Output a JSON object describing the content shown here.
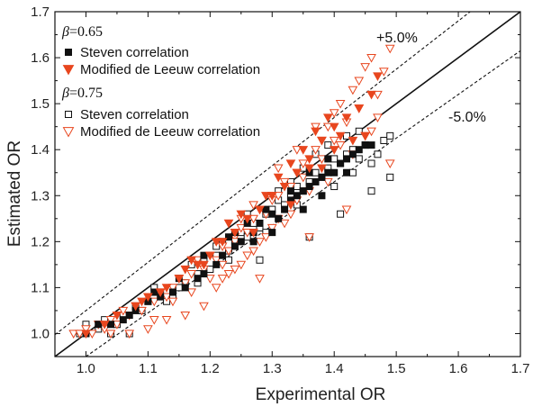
{
  "chart_data": {
    "type": "scatter",
    "xlabel": "Experimental OR",
    "ylabel": "Estimated OR",
    "xlim": [
      0.95,
      1.7
    ],
    "ylim": [
      0.95,
      1.7
    ],
    "xticks": [
      "1.0",
      "1.1",
      "1.2",
      "1.3",
      "1.4",
      "1.5",
      "1.6",
      "1.7"
    ],
    "yticks": [
      "1.0",
      "1.1",
      "1.2",
      "1.3",
      "1.4",
      "1.5",
      "1.6",
      "1.7"
    ],
    "grid": false,
    "legend_position": "top-left",
    "legend_groups": [
      {
        "title": "β=0.65",
        "symbol": "β",
        "value": "=0.65",
        "entries": [
          "Steven correlation",
          "Modified de Leeuw correlation"
        ]
      },
      {
        "title": "β=0.75",
        "symbol": "β",
        "value": "=0.75",
        "entries": [
          "Steven correlation",
          "Modified de Leeuw correlation"
        ]
      }
    ],
    "reference_lines": [
      {
        "name": "y=x",
        "slope": 1.0,
        "style": "solid"
      },
      {
        "name": "+5.0%",
        "label": "+5.0%",
        "slope": 1.05,
        "style": "dashed"
      },
      {
        "name": "-5.0%",
        "label": "-5.0%",
        "slope": 0.95,
        "style": "dashed"
      }
    ],
    "series": [
      {
        "name": "Steven correlation",
        "group": "β=0.65",
        "marker": "square",
        "filled": true,
        "color": "#111111",
        "points": [
          [
            1.0,
            1.0
          ],
          [
            1.02,
            1.02
          ],
          [
            1.04,
            1.02
          ],
          [
            1.06,
            1.03
          ],
          [
            1.08,
            1.05
          ],
          [
            1.1,
            1.07
          ],
          [
            1.12,
            1.08
          ],
          [
            1.14,
            1.09
          ],
          [
            1.16,
            1.1
          ],
          [
            1.18,
            1.12
          ],
          [
            1.19,
            1.13
          ],
          [
            1.21,
            1.15
          ],
          [
            1.22,
            1.17
          ],
          [
            1.24,
            1.19
          ],
          [
            1.25,
            1.2
          ],
          [
            1.27,
            1.22
          ],
          [
            1.28,
            1.24
          ],
          [
            1.3,
            1.26
          ],
          [
            1.31,
            1.25
          ],
          [
            1.32,
            1.27
          ],
          [
            1.33,
            1.29
          ],
          [
            1.34,
            1.3
          ],
          [
            1.35,
            1.31
          ],
          [
            1.36,
            1.32
          ],
          [
            1.37,
            1.33
          ],
          [
            1.38,
            1.34
          ],
          [
            1.39,
            1.35
          ],
          [
            1.4,
            1.35
          ],
          [
            1.41,
            1.37
          ],
          [
            1.42,
            1.38
          ],
          [
            1.43,
            1.39
          ],
          [
            1.44,
            1.4
          ],
          [
            1.45,
            1.41
          ],
          [
            1.23,
            1.21
          ],
          [
            1.26,
            1.24
          ],
          [
            1.29,
            1.27
          ],
          [
            1.33,
            1.31
          ],
          [
            1.36,
            1.35
          ],
          [
            1.39,
            1.38
          ],
          [
            1.19,
            1.17
          ],
          [
            1.15,
            1.12
          ],
          [
            1.27,
            1.2
          ],
          [
            1.35,
            1.27
          ],
          [
            1.42,
            1.35
          ],
          [
            1.11,
            1.09
          ],
          [
            1.07,
            1.04
          ],
          [
            1.3,
            1.22
          ],
          [
            1.38,
            1.3
          ],
          [
            1.46,
            1.41
          ],
          [
            1.24,
            1.22
          ]
        ]
      },
      {
        "name": "Modified de Leeuw correlation",
        "group": "β=0.65",
        "marker": "triangle-down",
        "filled": true,
        "color": "#e8461e",
        "points": [
          [
            1.0,
            1.0
          ],
          [
            1.03,
            1.02
          ],
          [
            1.05,
            1.04
          ],
          [
            1.08,
            1.06
          ],
          [
            1.1,
            1.08
          ],
          [
            1.13,
            1.1
          ],
          [
            1.15,
            1.12
          ],
          [
            1.18,
            1.15
          ],
          [
            1.2,
            1.17
          ],
          [
            1.22,
            1.2
          ],
          [
            1.24,
            1.22
          ],
          [
            1.26,
            1.25
          ],
          [
            1.28,
            1.27
          ],
          [
            1.3,
            1.3
          ],
          [
            1.32,
            1.32
          ],
          [
            1.34,
            1.35
          ],
          [
            1.36,
            1.38
          ],
          [
            1.38,
            1.42
          ],
          [
            1.4,
            1.45
          ],
          [
            1.42,
            1.47
          ],
          [
            1.44,
            1.49
          ],
          [
            1.46,
            1.52
          ],
          [
            1.47,
            1.56
          ],
          [
            1.35,
            1.4
          ],
          [
            1.37,
            1.44
          ],
          [
            1.39,
            1.47
          ],
          [
            1.41,
            1.43
          ],
          [
            1.43,
            1.42
          ],
          [
            1.29,
            1.3
          ],
          [
            1.31,
            1.34
          ],
          [
            1.33,
            1.37
          ],
          [
            1.25,
            1.26
          ],
          [
            1.21,
            1.2
          ],
          [
            1.17,
            1.16
          ],
          [
            1.12,
            1.09
          ],
          [
            1.19,
            1.15
          ],
          [
            1.27,
            1.22
          ],
          [
            1.33,
            1.28
          ],
          [
            1.45,
            1.43
          ],
          [
            1.23,
            1.24
          ],
          [
            1.36,
            1.36
          ],
          [
            1.4,
            1.4
          ],
          [
            1.38,
            1.36
          ],
          [
            1.16,
            1.14
          ],
          [
            1.09,
            1.07
          ]
        ]
      },
      {
        "name": "Steven correlation",
        "group": "β=0.75",
        "marker": "square",
        "filled": false,
        "color": "#111111",
        "points": [
          [
            0.99,
            1.0
          ],
          [
            1.0,
            1.02
          ],
          [
            1.02,
            1.01
          ],
          [
            1.03,
            1.03
          ],
          [
            1.05,
            1.02
          ],
          [
            1.06,
            1.04
          ],
          [
            1.08,
            1.06
          ],
          [
            1.09,
            1.05
          ],
          [
            1.1,
            1.07
          ],
          [
            1.12,
            1.09
          ],
          [
            1.13,
            1.07
          ],
          [
            1.15,
            1.1
          ],
          [
            1.16,
            1.11
          ],
          [
            1.18,
            1.13
          ],
          [
            1.19,
            1.16
          ],
          [
            1.2,
            1.14
          ],
          [
            1.21,
            1.17
          ],
          [
            1.23,
            1.18
          ],
          [
            1.24,
            1.2
          ],
          [
            1.25,
            1.22
          ],
          [
            1.26,
            1.21
          ],
          [
            1.27,
            1.24
          ],
          [
            1.28,
            1.23
          ],
          [
            1.29,
            1.26
          ],
          [
            1.3,
            1.27
          ],
          [
            1.31,
            1.29
          ],
          [
            1.32,
            1.28
          ],
          [
            1.33,
            1.3
          ],
          [
            1.34,
            1.32
          ],
          [
            1.35,
            1.31
          ],
          [
            1.36,
            1.33
          ],
          [
            1.37,
            1.35
          ],
          [
            1.38,
            1.34
          ],
          [
            1.39,
            1.36
          ],
          [
            1.4,
            1.38
          ],
          [
            1.41,
            1.37
          ],
          [
            1.42,
            1.39
          ],
          [
            1.43,
            1.4
          ],
          [
            1.44,
            1.38
          ],
          [
            1.45,
            1.41
          ],
          [
            1.47,
            1.39
          ],
          [
            1.48,
            1.42
          ],
          [
            1.49,
            1.43
          ],
          [
            1.49,
            1.34
          ],
          [
            1.46,
            1.31
          ],
          [
            1.41,
            1.26
          ],
          [
            1.36,
            1.21
          ],
          [
            1.28,
            1.16
          ],
          [
            1.22,
            1.2
          ],
          [
            1.17,
            1.15
          ],
          [
            1.11,
            1.1
          ],
          [
            1.07,
            1.0
          ],
          [
            1.04,
            1.0
          ],
          [
            1.14,
            1.08
          ],
          [
            1.26,
            1.26
          ],
          [
            1.33,
            1.33
          ],
          [
            1.39,
            1.41
          ],
          [
            1.42,
            1.43
          ],
          [
            1.44,
            1.44
          ],
          [
            1.37,
            1.39
          ],
          [
            1.31,
            1.31
          ],
          [
            1.21,
            1.19
          ],
          [
            1.35,
            1.36
          ],
          [
            1.43,
            1.35
          ],
          [
            1.46,
            1.37
          ],
          [
            1.4,
            1.32
          ],
          [
            1.34,
            1.28
          ],
          [
            1.29,
            1.22
          ],
          [
            1.23,
            1.16
          ],
          [
            1.18,
            1.11
          ]
        ]
      },
      {
        "name": "Modified de Leeuw correlation",
        "group": "β=0.75",
        "marker": "triangle-down",
        "filled": false,
        "color": "#e8461e",
        "points": [
          [
            0.98,
            1.0
          ],
          [
            0.99,
            1.0
          ],
          [
            1.0,
            1.01
          ],
          [
            1.01,
            1.0
          ],
          [
            1.02,
            1.02
          ],
          [
            1.03,
            1.01
          ],
          [
            1.04,
            1.03
          ],
          [
            1.05,
            1.02
          ],
          [
            1.06,
            1.05
          ],
          [
            1.07,
            1.04
          ],
          [
            1.08,
            1.06
          ],
          [
            1.09,
            1.05
          ],
          [
            1.1,
            1.08
          ],
          [
            1.11,
            1.07
          ],
          [
            1.12,
            1.09
          ],
          [
            1.13,
            1.08
          ],
          [
            1.14,
            1.1
          ],
          [
            1.15,
            1.12
          ],
          [
            1.16,
            1.11
          ],
          [
            1.17,
            1.13
          ],
          [
            1.18,
            1.15
          ],
          [
            1.19,
            1.14
          ],
          [
            1.2,
            1.17
          ],
          [
            1.21,
            1.16
          ],
          [
            1.22,
            1.19
          ],
          [
            1.23,
            1.18
          ],
          [
            1.24,
            1.21
          ],
          [
            1.25,
            1.23
          ],
          [
            1.26,
            1.22
          ],
          [
            1.27,
            1.25
          ],
          [
            1.28,
            1.27
          ],
          [
            1.29,
            1.26
          ],
          [
            1.3,
            1.29
          ],
          [
            1.31,
            1.3
          ],
          [
            1.32,
            1.33
          ],
          [
            1.33,
            1.32
          ],
          [
            1.34,
            1.35
          ],
          [
            1.35,
            1.37
          ],
          [
            1.36,
            1.36
          ],
          [
            1.37,
            1.4
          ],
          [
            1.38,
            1.42
          ],
          [
            1.39,
            1.45
          ],
          [
            1.4,
            1.48
          ],
          [
            1.41,
            1.5
          ],
          [
            1.42,
            1.46
          ],
          [
            1.43,
            1.53
          ],
          [
            1.44,
            1.55
          ],
          [
            1.45,
            1.58
          ],
          [
            1.46,
            1.6
          ],
          [
            1.47,
            1.47
          ],
          [
            1.48,
            1.57
          ],
          [
            1.49,
            1.62
          ],
          [
            1.49,
            1.37
          ],
          [
            1.45,
            1.43
          ],
          [
            1.4,
            1.42
          ],
          [
            1.38,
            1.38
          ],
          [
            1.36,
            1.31
          ],
          [
            1.34,
            1.29
          ],
          [
            1.33,
            1.26
          ],
          [
            1.31,
            1.25
          ],
          [
            1.3,
            1.23
          ],
          [
            1.28,
            1.2
          ],
          [
            1.27,
            1.18
          ],
          [
            1.26,
            1.17
          ],
          [
            1.25,
            1.15
          ],
          [
            1.24,
            1.14
          ],
          [
            1.23,
            1.13
          ],
          [
            1.22,
            1.12
          ],
          [
            1.21,
            1.1
          ],
          [
            1.19,
            1.06
          ],
          [
            1.16,
            1.04
          ],
          [
            1.13,
            1.03
          ],
          [
            1.1,
            1.01
          ],
          [
            1.07,
            1.0
          ],
          [
            1.04,
            1.0
          ],
          [
            1.28,
            1.12
          ],
          [
            1.36,
            1.21
          ],
          [
            1.42,
            1.27
          ],
          [
            1.39,
            1.33
          ],
          [
            1.43,
            1.39
          ],
          [
            1.3,
            1.3
          ],
          [
            1.35,
            1.34
          ],
          [
            1.24,
            1.2
          ],
          [
            1.2,
            1.12
          ],
          [
            1.17,
            1.09
          ],
          [
            1.31,
            1.36
          ],
          [
            1.37,
            1.45
          ],
          [
            1.44,
            1.49
          ],
          [
            1.41,
            1.41
          ],
          [
            1.34,
            1.4
          ],
          [
            1.27,
            1.28
          ],
          [
            1.32,
            1.24
          ],
          [
            1.29,
            1.21
          ],
          [
            1.25,
            1.25
          ],
          [
            1.18,
            1.16
          ],
          [
            1.14,
            1.07
          ],
          [
            1.11,
            1.03
          ],
          [
            1.22,
            1.15
          ],
          [
            1.46,
            1.44
          ],
          [
            1.47,
            1.52
          ]
        ]
      }
    ]
  }
}
